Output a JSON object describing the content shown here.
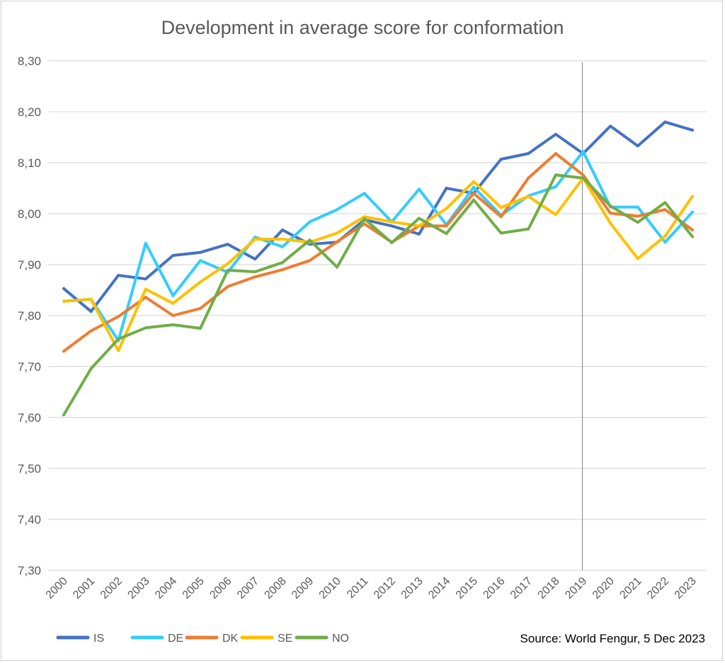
{
  "chart_data": {
    "type": "line",
    "title": "Development in average score for conformation",
    "source": "Source: World Fengur, 5 Dec 2023",
    "categories": [
      "2000",
      "2001",
      "2002",
      "2003",
      "2004",
      "2005",
      "2006",
      "2007",
      "2008",
      "2009",
      "2010",
      "2011",
      "2012",
      "2013",
      "2014",
      "2015",
      "2016",
      "2017",
      "2018",
      "2019",
      "2020",
      "2021",
      "2022",
      "2023"
    ],
    "ylim": [
      7.3,
      8.3
    ],
    "yticks": [
      "7,30",
      "7,40",
      "7,50",
      "7,60",
      "7,70",
      "7,80",
      "7,90",
      "8,00",
      "8,10",
      "8,20",
      "8,30"
    ],
    "grid": true,
    "legend_position": "bottom-left",
    "marker_line_category": "2019",
    "series": [
      {
        "name": "IS",
        "color": "#4472C4",
        "values": [
          7.853,
          7.808,
          7.879,
          7.872,
          7.918,
          7.924,
          7.94,
          7.911,
          7.968,
          7.94,
          7.944,
          7.988,
          7.976,
          7.96,
          8.05,
          8.04,
          8.107,
          8.118,
          8.156,
          8.118,
          8.172,
          8.133,
          8.18,
          8.164
        ]
      },
      {
        "name": "DE",
        "color": "#33CCFF",
        "values": [
          7.828,
          7.832,
          7.751,
          7.942,
          7.839,
          7.908,
          7.885,
          7.954,
          7.935,
          7.984,
          8.008,
          8.04,
          7.984,
          8.048,
          7.978,
          8.052,
          7.997,
          8.035,
          8.053,
          8.122,
          8.013,
          8.013,
          7.944,
          8.003
        ]
      },
      {
        "name": "DK",
        "color": "#ED7D31",
        "values": [
          7.73,
          7.77,
          7.798,
          7.836,
          7.8,
          7.814,
          7.857,
          7.876,
          7.89,
          7.908,
          7.945,
          7.98,
          7.944,
          7.976,
          7.976,
          8.04,
          7.994,
          8.07,
          8.118,
          8.076,
          8.001,
          7.995,
          8.008,
          7.968
        ]
      },
      {
        "name": "SE",
        "color": "#FFC000",
        "values": [
          7.828,
          7.832,
          7.731,
          7.852,
          7.824,
          7.866,
          7.902,
          7.95,
          7.95,
          7.944,
          7.962,
          7.994,
          7.984,
          7.976,
          8.01,
          8.063,
          8.012,
          8.034,
          7.998,
          8.07,
          7.981,
          7.912,
          7.956,
          8.034
        ]
      },
      {
        "name": "NO",
        "color": "#70AD47",
        "values": [
          7.605,
          7.696,
          7.754,
          7.776,
          7.782,
          7.775,
          7.889,
          7.886,
          7.904,
          7.948,
          7.895,
          7.99,
          7.943,
          7.991,
          7.961,
          8.027,
          7.962,
          7.97,
          8.076,
          8.07,
          8.015,
          7.983,
          8.022,
          7.955
        ]
      }
    ]
  }
}
